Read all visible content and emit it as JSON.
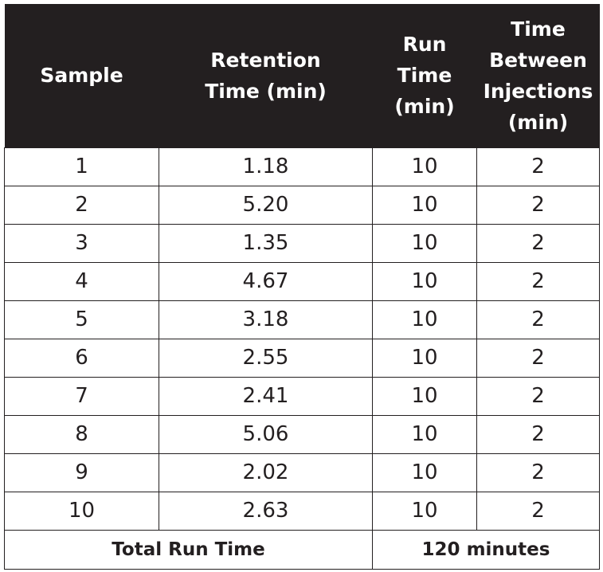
{
  "header": {
    "sample": [
      "Sample"
    ],
    "retention_time": [
      "Retention",
      "Time (min)"
    ],
    "run_time": [
      "Run Time",
      "(min)"
    ],
    "time_between": [
      "Time",
      "Between",
      "Injections",
      "(min)"
    ]
  },
  "rows": [
    {
      "sample": "1",
      "retention_time": "1.18",
      "run_time": "10",
      "time_between": "2"
    },
    {
      "sample": "2",
      "retention_time": "5.20",
      "run_time": "10",
      "time_between": "2"
    },
    {
      "sample": "3",
      "retention_time": "1.35",
      "run_time": "10",
      "time_between": "2"
    },
    {
      "sample": "4",
      "retention_time": "4.67",
      "run_time": "10",
      "time_between": "2"
    },
    {
      "sample": "5",
      "retention_time": "3.18",
      "run_time": "10",
      "time_between": "2"
    },
    {
      "sample": "6",
      "retention_time": "2.55",
      "run_time": "10",
      "time_between": "2"
    },
    {
      "sample": "7",
      "retention_time": "2.41",
      "run_time": "10",
      "time_between": "2"
    },
    {
      "sample": "8",
      "retention_time": "5.06",
      "run_time": "10",
      "time_between": "2"
    },
    {
      "sample": "9",
      "retention_time": "2.02",
      "run_time": "10",
      "time_between": "2"
    },
    {
      "sample": "10",
      "retention_time": "2.63",
      "run_time": "10",
      "time_between": "2"
    }
  ],
  "total": {
    "label": "Total Run Time",
    "value": "120 minutes"
  },
  "colors": {
    "header_background": "#231f20",
    "header_text": "#ffffff",
    "grid_line": "#231f20"
  }
}
